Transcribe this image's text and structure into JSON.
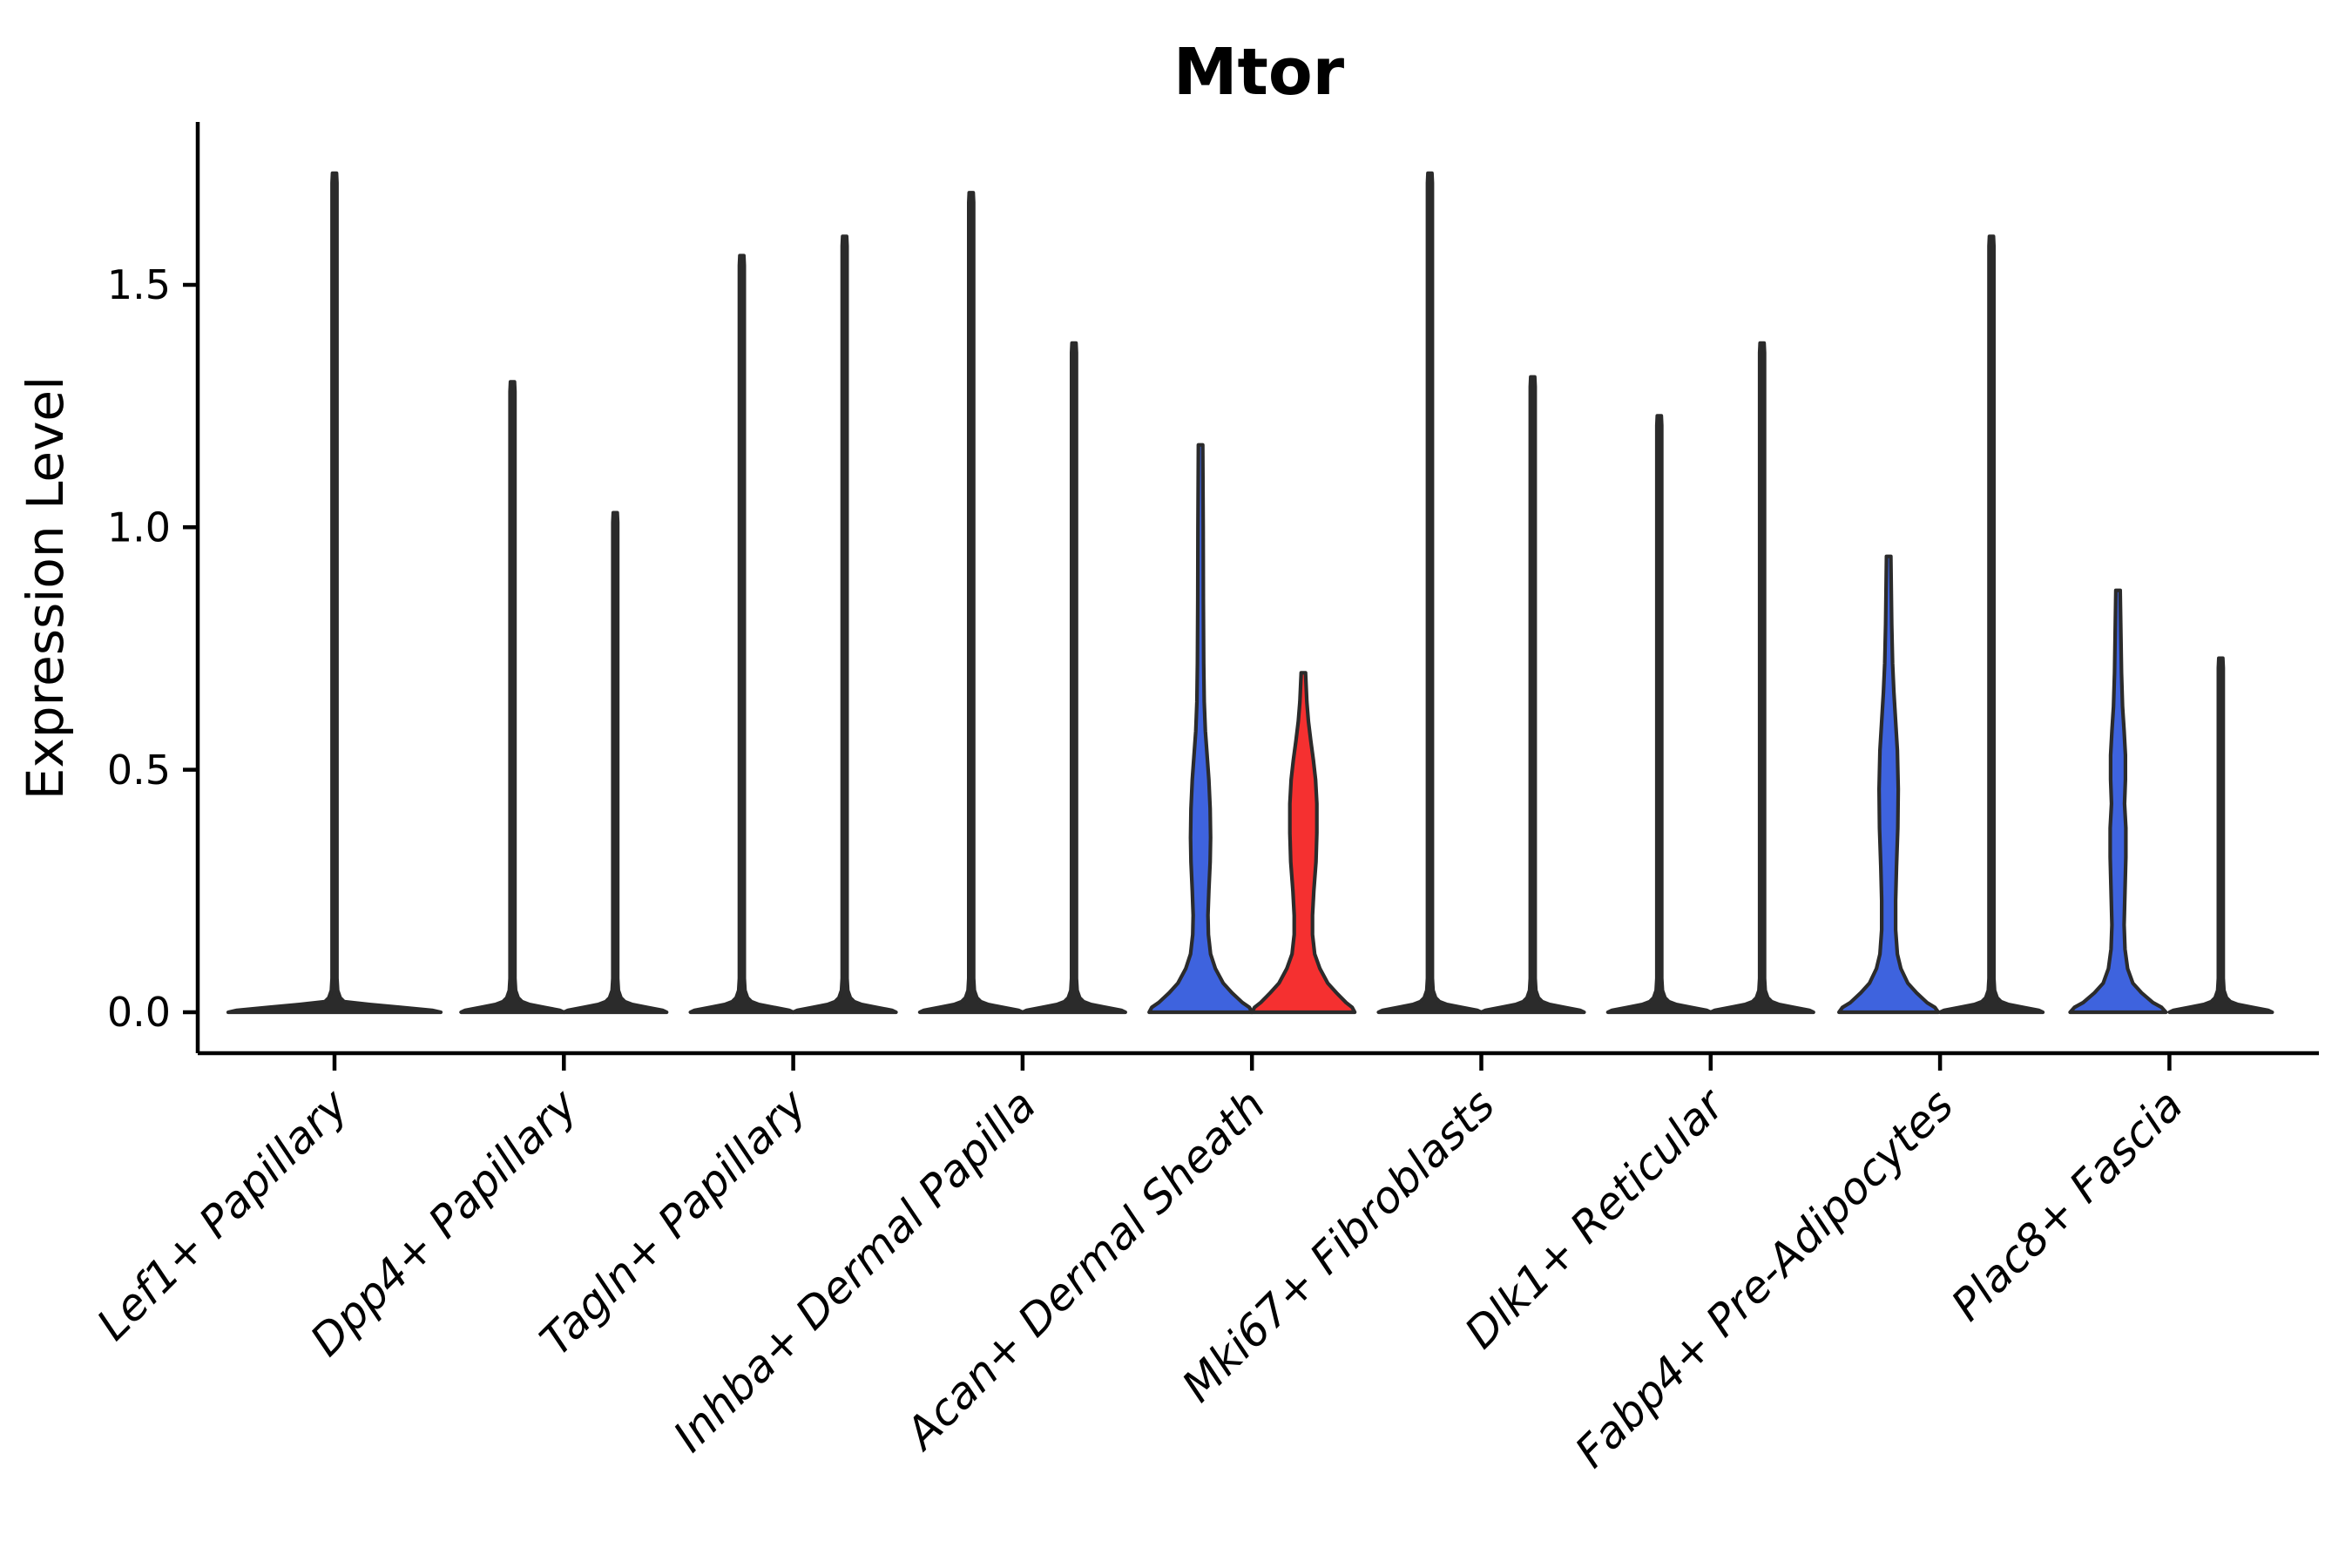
{
  "title": "Mtor",
  "y_axis": {
    "label": "Expression Level",
    "ticks": [
      "0.0",
      "0.5",
      "1.0",
      "1.5"
    ],
    "tick_values": [
      0.0,
      0.5,
      1.0,
      1.5
    ]
  },
  "colors": {
    "blue_group": "#3E63DE",
    "red_group": "#F53030",
    "violin_outline": "#2B2B2B",
    "axis": "#000000",
    "background": "#ffffff"
  },
  "chart_data": {
    "type": "violin",
    "title": "Mtor",
    "xlabel": "",
    "ylabel": "Expression Level",
    "ylim": [
      -0.06,
      1.84
    ],
    "yticks": [
      0.0,
      0.5,
      1.0,
      1.5
    ],
    "grid": false,
    "legend": "none",
    "categories": [
      "Lef1+ Papillary",
      "Dpp4+ Papillary",
      "Tagln+ Papillary",
      "Inhba+ Dermal Papilla",
      "Acan+ Dermal Sheath",
      "Mki67+ Fibroblasts",
      "Dlk1+ Reticular",
      "Fabp4+ Pre-Adipocytes",
      "Plac8+ Fascia"
    ],
    "violins": [
      {
        "category": "Lef1+ Papillary",
        "position": "center",
        "style": "spike",
        "fill": "#2B2B2B",
        "max": 1.73,
        "base_halfwidth": 122
      },
      {
        "category": "Dpp4+ Papillary",
        "position": "left",
        "style": "spike",
        "fill": "#2B2B2B",
        "max": 1.3,
        "base_halfwidth": 59
      },
      {
        "category": "Dpp4+ Papillary",
        "position": "right",
        "style": "spike",
        "fill": "#2B2B2B",
        "max": 1.03,
        "base_halfwidth": 59
      },
      {
        "category": "Tagln+ Papillary",
        "position": "left",
        "style": "spike",
        "fill": "#2B2B2B",
        "max": 1.56,
        "base_halfwidth": 59
      },
      {
        "category": "Tagln+ Papillary",
        "position": "right",
        "style": "spike",
        "fill": "#2B2B2B",
        "max": 1.6,
        "base_halfwidth": 59
      },
      {
        "category": "Inhba+ Dermal Papilla",
        "position": "left",
        "style": "spike",
        "fill": "#2B2B2B",
        "max": 1.69,
        "base_halfwidth": 59
      },
      {
        "category": "Inhba+ Dermal Papilla",
        "position": "right",
        "style": "spike",
        "fill": "#2B2B2B",
        "max": 1.38,
        "base_halfwidth": 59
      },
      {
        "category": "Acan+ Dermal Sheath",
        "position": "left",
        "style": "violin",
        "fill": "#3E63DE",
        "max": 1.17,
        "base_halfwidth": 59,
        "profile": [
          [
            0,
            59
          ],
          [
            0.01,
            56
          ],
          [
            0.02,
            48
          ],
          [
            0.04,
            36
          ],
          [
            0.06,
            26
          ],
          [
            0.09,
            17
          ],
          [
            0.12,
            11.5
          ],
          [
            0.16,
            9
          ],
          [
            0.2,
            8.5
          ],
          [
            0.25,
            9.5
          ],
          [
            0.31,
            11
          ],
          [
            0.36,
            11.5
          ],
          [
            0.42,
            11
          ],
          [
            0.48,
            9.5
          ],
          [
            0.53,
            7.5
          ],
          [
            0.58,
            5.5
          ],
          [
            0.64,
            4.2
          ],
          [
            0.72,
            3.6
          ],
          [
            0.85,
            3.2
          ],
          [
            1.0,
            3.0
          ],
          [
            1.17,
            2.5
          ]
        ]
      },
      {
        "category": "Acan+ Dermal Sheath",
        "position": "right",
        "style": "violin",
        "fill": "#F53030",
        "max": 0.7,
        "base_halfwidth": 59,
        "profile": [
          [
            0,
            59
          ],
          [
            0.01,
            56
          ],
          [
            0.02,
            49
          ],
          [
            0.04,
            38
          ],
          [
            0.06,
            28
          ],
          [
            0.09,
            19
          ],
          [
            0.12,
            13
          ],
          [
            0.16,
            10.5
          ],
          [
            0.2,
            10.5
          ],
          [
            0.25,
            12
          ],
          [
            0.31,
            14.5
          ],
          [
            0.37,
            15.5
          ],
          [
            0.43,
            15.5
          ],
          [
            0.48,
            14
          ],
          [
            0.52,
            11.5
          ],
          [
            0.56,
            8.5
          ],
          [
            0.6,
            5.8
          ],
          [
            0.64,
            4.0
          ],
          [
            0.7,
            2.5
          ]
        ]
      },
      {
        "category": "Mki67+ Fibroblasts",
        "position": "left",
        "style": "spike",
        "fill": "#2B2B2B",
        "max": 1.73,
        "base_halfwidth": 59
      },
      {
        "category": "Mki67+ Fibroblasts",
        "position": "right",
        "style": "spike",
        "fill": "#2B2B2B",
        "max": 1.31,
        "base_halfwidth": 59
      },
      {
        "category": "Dlk1+ Reticular",
        "position": "left",
        "style": "spike",
        "fill": "#2B2B2B",
        "max": 1.23,
        "base_halfwidth": 59
      },
      {
        "category": "Dlk1+ Reticular",
        "position": "right",
        "style": "spike",
        "fill": "#2B2B2B",
        "max": 1.38,
        "base_halfwidth": 59
      },
      {
        "category": "Fabp4+ Pre-Adipocytes",
        "position": "left",
        "style": "violin",
        "fill": "#3E63DE",
        "max": 0.94,
        "base_halfwidth": 57,
        "profile": [
          [
            0,
            57
          ],
          [
            0.01,
            53
          ],
          [
            0.02,
            44
          ],
          [
            0.04,
            32
          ],
          [
            0.06,
            22
          ],
          [
            0.09,
            14
          ],
          [
            0.12,
            10
          ],
          [
            0.17,
            8
          ],
          [
            0.23,
            8
          ],
          [
            0.3,
            9
          ],
          [
            0.38,
            10.5
          ],
          [
            0.46,
            11
          ],
          [
            0.54,
            10
          ],
          [
            0.6,
            8
          ],
          [
            0.66,
            6
          ],
          [
            0.72,
            4.5
          ],
          [
            0.8,
            3.5
          ],
          [
            0.94,
            2.5
          ]
        ]
      },
      {
        "category": "Fabp4+ Pre-Adipocytes",
        "position": "right",
        "style": "spike",
        "fill": "#2B2B2B",
        "max": 1.6,
        "base_halfwidth": 59
      },
      {
        "category": "Plac8+ Fascia",
        "position": "left",
        "style": "violin",
        "fill": "#3E63DE",
        "max": 0.87,
        "base_halfwidth": 55,
        "profile": [
          [
            0,
            55
          ],
          [
            0.01,
            50
          ],
          [
            0.02,
            40
          ],
          [
            0.04,
            27
          ],
          [
            0.06,
            17
          ],
          [
            0.09,
            11
          ],
          [
            0.13,
            8
          ],
          [
            0.18,
            7
          ],
          [
            0.25,
            8
          ],
          [
            0.32,
            9
          ],
          [
            0.38,
            9
          ],
          [
            0.43,
            7.5
          ],
          [
            0.48,
            8.5
          ],
          [
            0.53,
            8.5
          ],
          [
            0.58,
            7
          ],
          [
            0.63,
            5.2
          ],
          [
            0.7,
            4
          ],
          [
            0.87,
            2.5
          ]
        ]
      },
      {
        "category": "Plac8+ Fascia",
        "position": "right",
        "style": "spike",
        "fill": "#2B2B2B",
        "max": 0.73,
        "base_halfwidth": 59
      }
    ]
  }
}
